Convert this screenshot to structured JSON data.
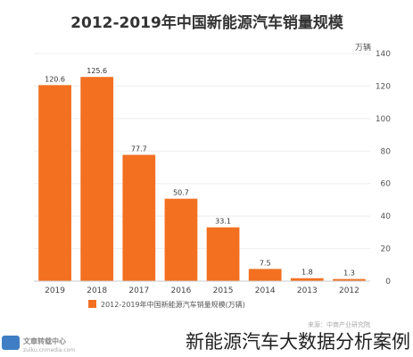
{
  "chart_data": {
    "type": "bar",
    "title": "2012-2019年中国新能源汽车销量规模",
    "ylabel_unit": "万辆",
    "categories": [
      "2019",
      "2018",
      "2017",
      "2016",
      "2015",
      "2014",
      "2013",
      "2012"
    ],
    "values": [
      120.6,
      125.6,
      77.7,
      50.7,
      33.1,
      7.5,
      1.8,
      1.3
    ],
    "data_labels": [
      "120.6",
      "125.6",
      "77.7",
      "50.7",
      "33.1",
      "7.5",
      "1.8",
      "1.3"
    ],
    "yticks": [
      0,
      20,
      40,
      60,
      80,
      100,
      120,
      140
    ],
    "ylim": [
      0,
      140
    ],
    "y_axis_position": "right",
    "legend": "2012-2019年中国新能源汽车销量规模(万辆)",
    "legend_placement": "bottom-left",
    "bar_color": "#f37021",
    "source": "来源：中商产业研究院"
  },
  "caption": "新能源汽车大数据分析案例",
  "watermark": {
    "name": "文章转载中心",
    "sub": "zuiku.cnmedia.com"
  }
}
